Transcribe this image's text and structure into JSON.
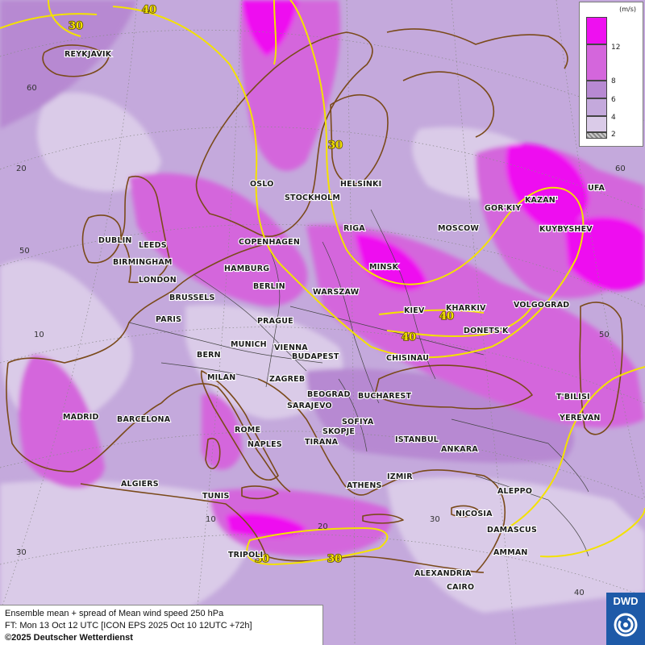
{
  "legend": {
    "unit": "(m/s)",
    "levels": [
      {
        "label": "12",
        "color": "#ee10f0"
      },
      {
        "label": "8",
        "color": "#d466dc"
      },
      {
        "label": "6",
        "color": "#b789d2"
      },
      {
        "label": "4",
        "color": "#c4a9dc"
      },
      {
        "label": "2",
        "color": "#dacbe8"
      }
    ]
  },
  "info": {
    "line1": "Ensemble mean + spread of Mean wind speed 250 hPa",
    "line2": "FT: Mon 13 Oct 12 UTC [ICON EPS 2025 Oct 10 12UTC +72h]",
    "copyright": "©2025 Deutscher Wetterdienst"
  },
  "logo": {
    "text": "DWD"
  },
  "isotachs": [
    "30",
    "40",
    "40",
    "30",
    "40",
    "40",
    "30",
    "30",
    "30"
  ],
  "graticule": [
    "60",
    "20",
    "50",
    "10",
    "30",
    "60",
    "50",
    "10",
    "20",
    "30",
    "40",
    "30"
  ],
  "cities": [
    "REYKJAVIK",
    "OSLO",
    "STOCKHOLM",
    "HELSINKI",
    "DUBLIN",
    "LEEDS",
    "BIRMINGHAM",
    "LONDON",
    "COPENHAGEN",
    "RIGA",
    "MOSCOW",
    "GOR'KIY",
    "KAZAN'",
    "UFA",
    "KUYBYSHEV",
    "MINSK",
    "HAMBURG",
    "BERLIN",
    "WARSZAW",
    "BRUSSELS",
    "PARIS",
    "PRAGUE",
    "KIEV",
    "KHARKIV",
    "VOLGOGRAD",
    "DONETS'K",
    "MUNICH",
    "VIENNA",
    "BERN",
    "BUDAPEST",
    "CHISINAU",
    "MILAN",
    "ZAGREB",
    "BEOGRAD",
    "BUCHAREST",
    "SARAJEVO",
    "MADRID",
    "BARCELONA",
    "ROME",
    "SOFIYA",
    "SKOPJE",
    "NAPLES",
    "TIRANA",
    "ISTANBUL",
    "ANKARA",
    "T'BILISI",
    "YEREVAN",
    "IZMIR",
    "ALGIERS",
    "TUNIS",
    "ATHENS",
    "ALEPPO",
    "NICOSIA",
    "DAMASCUS",
    "AMMAN",
    "TRIPOLI",
    "ALEXANDRIA",
    "CAIRO"
  ]
}
